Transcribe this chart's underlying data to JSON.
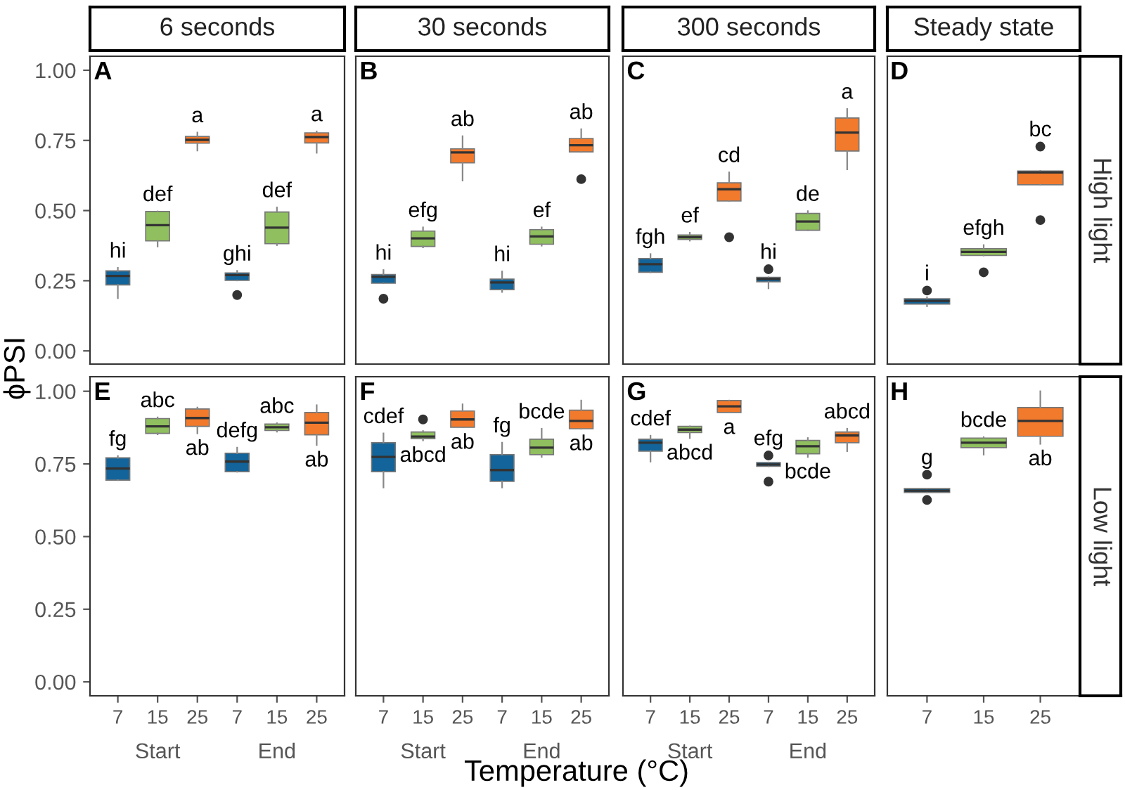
{
  "chart_data": [
    {
      "type": "box",
      "title": "6 seconds",
      "categories": [
        "7",
        "15",
        "25",
        "7",
        "15",
        "25"
      ],
      "colors": [
        "#12649a",
        "#8fbf5e",
        "#f27a2c",
        "#12649a",
        "#8fbf5e",
        "#f27a2c"
      ],
      "boxes": [
        {
          "low": 0.188,
          "q1": 0.235,
          "median": 0.267,
          "q3": 0.285,
          "high": 0.296
        },
        {
          "low": 0.372,
          "q1": 0.392,
          "median": 0.448,
          "q3": 0.497,
          "high": 0.497
        },
        {
          "low": 0.714,
          "q1": 0.74,
          "median": 0.752,
          "q3": 0.764,
          "high": 0.778
        },
        {
          "low": 0.251,
          "q1": 0.251,
          "median": 0.27,
          "q3": 0.278,
          "high": 0.285,
          "outliers": [
            0.199
          ]
        },
        {
          "low": 0.377,
          "q1": 0.382,
          "median": 0.439,
          "q3": 0.495,
          "high": 0.511
        },
        {
          "low": 0.706,
          "q1": 0.741,
          "median": 0.762,
          "q3": 0.777,
          "high": 0.782
        }
      ],
      "annotations": [
        "A",
        "hi",
        "def",
        "a",
        "ghi",
        "def",
        "a"
      ],
      "ylim": [
        -0.047,
        1.05
      ],
      "yticks": [
        {
          "value": 0,
          "label": "0.00"
        },
        {
          "value": 0.25,
          "label": "0.25"
        },
        {
          "value": 0.5,
          "label": "0.50"
        },
        {
          "value": 0.75,
          "label": "0.75"
        },
        {
          "value": 1,
          "label": "1.00"
        }
      ],
      "tick_labels": "y"
    },
    {
      "type": "box",
      "title": "30 seconds",
      "categories": [
        "7",
        "15",
        "25",
        "7",
        "15",
        "25"
      ],
      "colors": [
        "#12649a",
        "#8fbf5e",
        "#f27a2c",
        "#12649a",
        "#8fbf5e",
        "#f27a2c"
      ],
      "boxes": [
        {
          "low": 0.241,
          "q1": 0.241,
          "median": 0.264,
          "q3": 0.272,
          "high": 0.288,
          "outliers": [
            0.186
          ]
        },
        {
          "low": 0.369,
          "q1": 0.372,
          "median": 0.401,
          "q3": 0.427,
          "high": 0.44
        },
        {
          "low": 0.607,
          "q1": 0.67,
          "median": 0.707,
          "q3": 0.72,
          "high": 0.765
        },
        {
          "low": 0.21,
          "q1": 0.218,
          "median": 0.244,
          "q3": 0.256,
          "high": 0.283
        },
        {
          "low": 0.375,
          "q1": 0.38,
          "median": 0.408,
          "q3": 0.432,
          "high": 0.44
        },
        {
          "low": 0.709,
          "q1": 0.709,
          "median": 0.733,
          "q3": 0.757,
          "high": 0.79,
          "outliers": [
            0.612
          ]
        }
      ],
      "annotations": [
        "B",
        "hi",
        "efg",
        "ab",
        "hi",
        "ef",
        "ab"
      ],
      "ylim": [
        -0.047,
        1.05
      ],
      "tick_labels": false
    },
    {
      "type": "box",
      "title": "300 seconds",
      "categories": [
        "7",
        "15",
        "25",
        "7",
        "15",
        "25"
      ],
      "colors": [
        "#12649a",
        "#8fbf5e",
        "#f27a2c",
        "#12649a",
        "#8fbf5e",
        "#f27a2c"
      ],
      "boxes": [
        {
          "low": 0.28,
          "q1": 0.28,
          "median": 0.309,
          "q3": 0.329,
          "high": 0.345
        },
        {
          "low": 0.393,
          "q1": 0.397,
          "median": 0.405,
          "q3": 0.413,
          "high": 0.421
        },
        {
          "low": 0.534,
          "q1": 0.534,
          "median": 0.576,
          "q3": 0.599,
          "high": 0.636,
          "outliers": [
            0.405
          ]
        },
        {
          "low": 0.223,
          "q1": 0.246,
          "median": 0.256,
          "q3": 0.262,
          "high": 0.262,
          "outliers": [
            0.291
          ]
        },
        {
          "low": 0.43,
          "q1": 0.43,
          "median": 0.461,
          "q3": 0.49,
          "high": 0.498
        },
        {
          "low": 0.647,
          "q1": 0.712,
          "median": 0.778,
          "q3": 0.83,
          "high": 0.862
        }
      ],
      "annotations": [
        "C",
        "fgh",
        "ef",
        "cd",
        "hi",
        "de",
        "a"
      ],
      "ylim": [
        -0.047,
        1.05
      ],
      "tick_labels": false
    },
    {
      "type": "box",
      "title": "Steady state",
      "categories": [
        "7",
        "15",
        "25"
      ],
      "colors": [
        "#12649a",
        "#8fbf5e",
        "#f27a2c"
      ],
      "boxes": [
        {
          "low": 0.159,
          "q1": 0.167,
          "median": 0.178,
          "q3": 0.186,
          "high": 0.191,
          "outliers": [
            0.215
          ]
        },
        {
          "low": 0.34,
          "q1": 0.34,
          "median": 0.353,
          "q3": 0.364,
          "high": 0.377,
          "outliers": [
            0.28
          ]
        },
        {
          "low": 0.592,
          "q1": 0.592,
          "median": 0.636,
          "q3": 0.641,
          "high": 0.641,
          "outliers": [
            0.728,
            0.466
          ]
        }
      ],
      "annotations": [
        "D",
        "High light",
        "i",
        "efgh",
        "bc"
      ],
      "ylim": [
        -0.047,
        1.05
      ],
      "tick_labels": false
    },
    {
      "type": "box",
      "ylabel": "ϕPSI",
      "categories": [
        "7",
        "15",
        "25",
        "7",
        "15",
        "25"
      ],
      "colors": [
        "#12649a",
        "#8fbf5e",
        "#f27a2c",
        "#12649a",
        "#8fbf5e",
        "#f27a2c"
      ],
      "boxes": [
        {
          "low": 0.694,
          "q1": 0.694,
          "median": 0.734,
          "q3": 0.771,
          "high": 0.777
        },
        {
          "low": 0.852,
          "q1": 0.855,
          "median": 0.879,
          "q3": 0.906,
          "high": 0.91
        },
        {
          "low": 0.855,
          "q1": 0.879,
          "median": 0.908,
          "q3": 0.939,
          "high": 0.944
        },
        {
          "low": 0.723,
          "q1": 0.723,
          "median": 0.758,
          "q3": 0.787,
          "high": 0.806
        },
        {
          "low": 0.861,
          "q1": 0.865,
          "median": 0.876,
          "q3": 0.887,
          "high": 0.89
        },
        {
          "low": 0.815,
          "q1": 0.85,
          "median": 0.892,
          "q3": 0.927,
          "high": 0.952
        }
      ],
      "annotations": [
        "E",
        "Start",
        "End",
        "fg",
        "abc",
        "ab",
        "defg",
        "abc",
        "ab"
      ],
      "ylim": [
        -0.048,
        1.05
      ],
      "yticks": [
        {
          "value": 0,
          "label": "0.00"
        },
        {
          "value": 0.25,
          "label": "0.25"
        },
        {
          "value": 0.5,
          "label": "0.50"
        },
        {
          "value": 0.75,
          "label": "0.75"
        },
        {
          "value": 1,
          "label": "1.00"
        }
      ]
    },
    {
      "type": "box",
      "xlabel": "Temperature (°C)",
      "categories": [
        "7",
        "15",
        "25",
        "7",
        "15",
        "25"
      ],
      "colors": [
        "#12649a",
        "#8fbf5e",
        "#f27a2c",
        "#12649a",
        "#8fbf5e",
        "#f27a2c"
      ],
      "boxes": [
        {
          "low": 0.669,
          "q1": 0.723,
          "median": 0.774,
          "q3": 0.823,
          "high": 0.855
        },
        {
          "low": 0.831,
          "q1": 0.837,
          "median": 0.844,
          "q3": 0.86,
          "high": 0.863,
          "outliers": [
            0.903
          ]
        },
        {
          "low": 0.876,
          "q1": 0.876,
          "median": 0.903,
          "q3": 0.932,
          "high": 0.955
        },
        {
          "low": 0.669,
          "q1": 0.69,
          "median": 0.729,
          "q3": 0.782,
          "high": 0.823
        },
        {
          "low": 0.774,
          "q1": 0.782,
          "median": 0.806,
          "q3": 0.835,
          "high": 0.871
        },
        {
          "low": 0.871,
          "q1": 0.871,
          "median": 0.898,
          "q3": 0.935,
          "high": 0.968
        }
      ],
      "annotations": [
        "F",
        "Start",
        "End",
        "cdef",
        "abcd",
        "ab",
        "fg",
        "bcde",
        "ab"
      ],
      "ylim": [
        -0.048,
        1.05
      ],
      "tick_labels": "x"
    },
    {
      "type": "box",
      "categories": [
        "7",
        "15",
        "25",
        "7",
        "15",
        "25"
      ],
      "colors": [
        "#12649a",
        "#8fbf5e",
        "#f27a2c",
        "#12649a",
        "#8fbf5e",
        "#f27a2c"
      ],
      "boxes": [
        {
          "low": 0.758,
          "q1": 0.794,
          "median": 0.823,
          "q3": 0.835,
          "high": 0.847
        },
        {
          "low": 0.839,
          "q1": 0.858,
          "median": 0.868,
          "q3": 0.879,
          "high": 0.879
        },
        {
          "low": 0.927,
          "q1": 0.927,
          "median": 0.948,
          "q3": 0.968,
          "high": 0.968
        },
        {
          "low": 0.742,
          "q1": 0.742,
          "median": 0.748,
          "q3": 0.755,
          "high": 0.755,
          "outliers": [
            0.779,
            0.689
          ]
        },
        {
          "low": 0.774,
          "q1": 0.785,
          "median": 0.811,
          "q3": 0.831,
          "high": 0.839
        },
        {
          "low": 0.794,
          "q1": 0.823,
          "median": 0.848,
          "q3": 0.86,
          "high": 0.871
        }
      ],
      "annotations": [
        "G",
        "Start",
        "End",
        "cdef",
        "abcd",
        "a",
        "efg",
        "bcde",
        "abcd"
      ],
      "ylim": [
        -0.048,
        1.05
      ],
      "tick_labels": "x"
    },
    {
      "type": "box",
      "categories": [
        "7",
        "15",
        "25"
      ],
      "colors": [
        "#12649a",
        "#8fbf5e",
        "#f27a2c"
      ],
      "boxes": [
        {
          "low": 0.652,
          "q1": 0.652,
          "median": 0.658,
          "q3": 0.665,
          "high": 0.665,
          "outliers": [
            0.713,
            0.626
          ]
        },
        {
          "low": 0.782,
          "q1": 0.806,
          "median": 0.823,
          "q3": 0.839,
          "high": 0.842
        },
        {
          "low": 0.819,
          "q1": 0.845,
          "median": 0.898,
          "q3": 0.944,
          "high": 1.0
        }
      ],
      "annotations": [
        "H",
        "Low light",
        "g",
        "bcde",
        "ab"
      ],
      "ylim": [
        -0.048,
        1.05
      ],
      "tick_labels": "x"
    }
  ]
}
